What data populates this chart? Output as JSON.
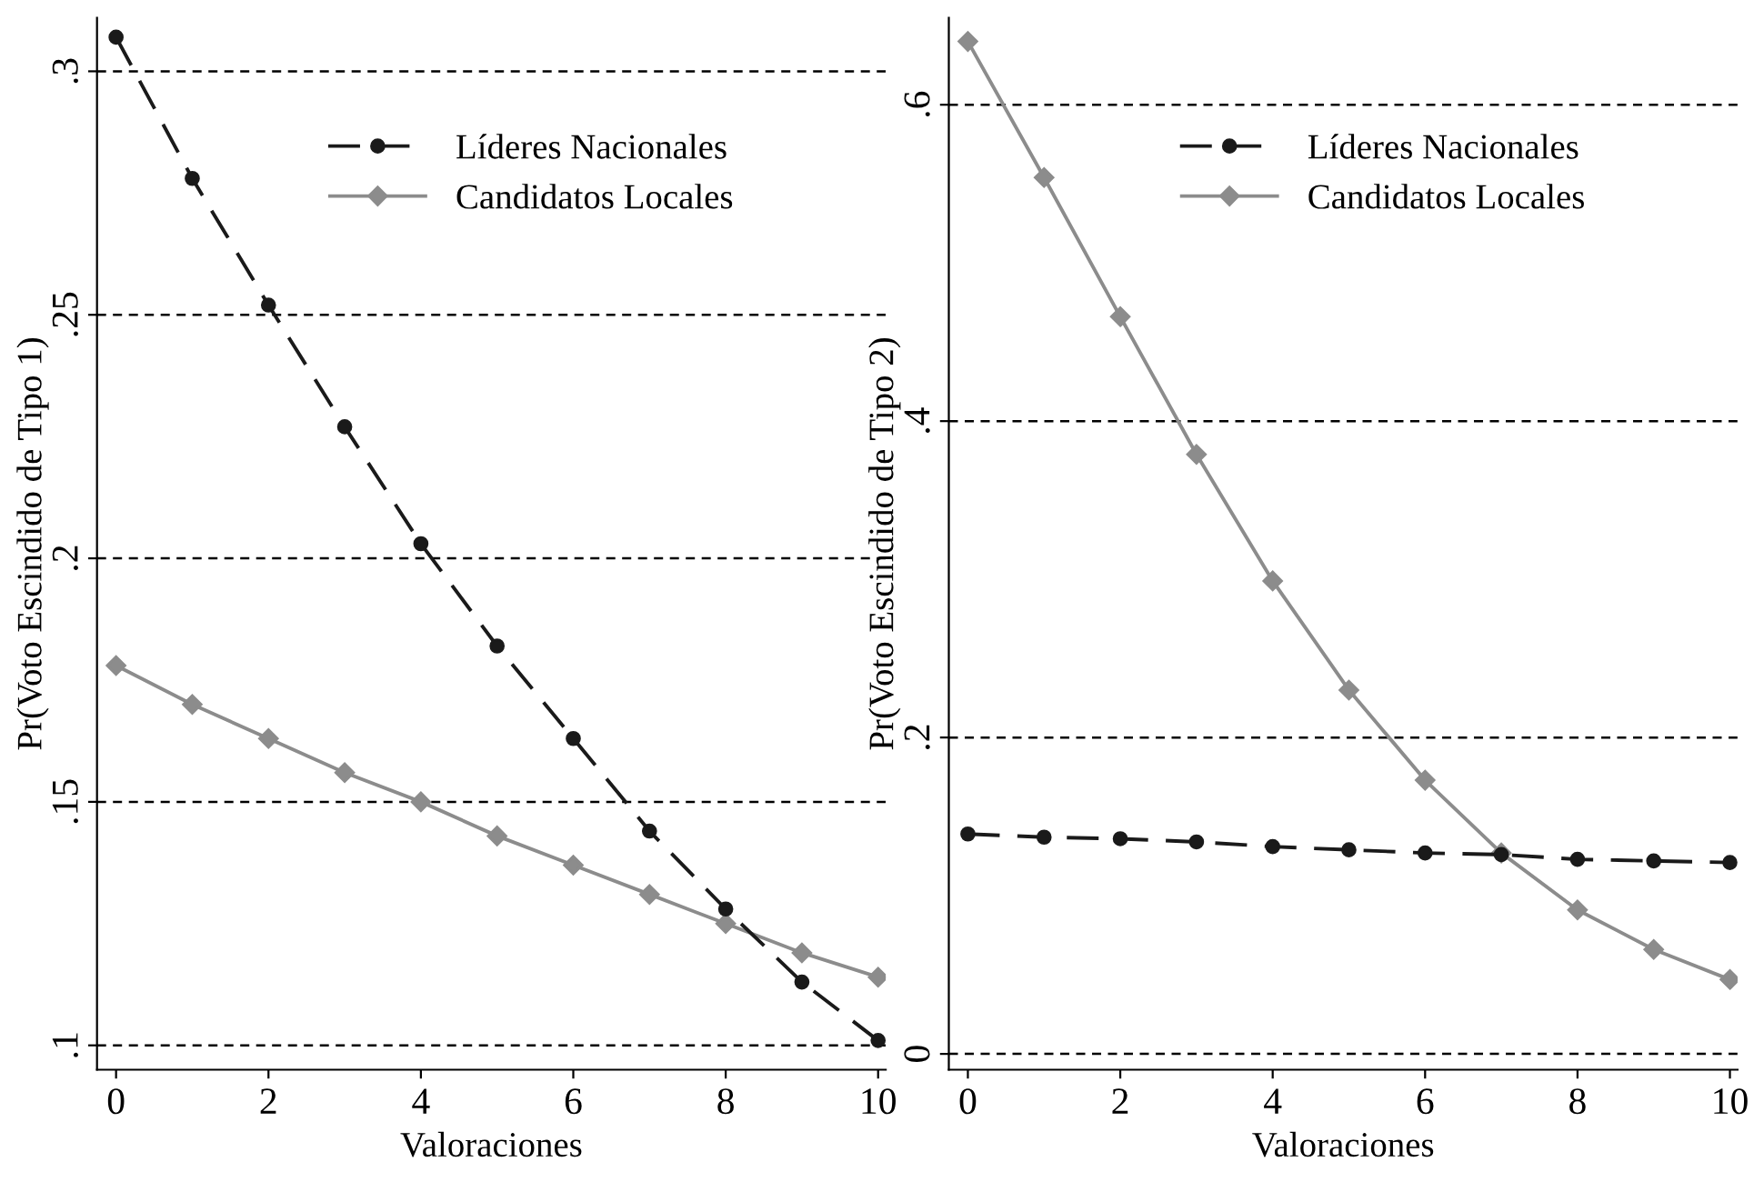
{
  "chart_data": [
    {
      "type": "line",
      "xlabel": "Valoraciones",
      "ylabel": "Pr(Voto Escindido de Tipo 1)",
      "x": [
        0,
        1,
        2,
        3,
        4,
        5,
        6,
        7,
        8,
        9,
        10
      ],
      "xlim": [
        -0.25,
        10.1
      ],
      "xticks": [
        0,
        2,
        4,
        6,
        8,
        10
      ],
      "ylim": [
        0.095,
        0.311
      ],
      "yticks": [
        {
          "value": 0.1,
          "label": ".1"
        },
        {
          "value": 0.15,
          "label": ".15"
        },
        {
          "value": 0.2,
          "label": ".2"
        },
        {
          "value": 0.25,
          "label": ".25"
        },
        {
          "value": 0.3,
          "label": ".3"
        }
      ],
      "grid": "y",
      "legend": "top",
      "series": [
        {
          "name": "Líderes Nacionales",
          "color": "#1a1a1a",
          "line_style": "dashed",
          "marker": "circle",
          "values": [
            0.307,
            0.278,
            0.252,
            0.227,
            0.203,
            0.182,
            0.163,
            0.144,
            0.128,
            0.113,
            0.101
          ]
        },
        {
          "name": "Candidatos Locales",
          "color": "#8c8c8c",
          "line_style": "solid",
          "marker": "diamond",
          "values": [
            0.178,
            0.17,
            0.163,
            0.156,
            0.15,
            0.143,
            0.137,
            0.131,
            0.125,
            0.119,
            0.114
          ]
        }
      ]
    },
    {
      "type": "line",
      "xlabel": "Valoraciones",
      "ylabel": "Pr(Voto Escindido de Tipo 2)",
      "x": [
        0,
        1,
        2,
        3,
        4,
        5,
        6,
        7,
        8,
        9,
        10
      ],
      "xlim": [
        -0.25,
        10.1
      ],
      "xticks": [
        0,
        2,
        4,
        6,
        8,
        10
      ],
      "ylim": [
        -0.01,
        0.655
      ],
      "yticks": [
        {
          "value": 0,
          "label": "0"
        },
        {
          "value": 0.2,
          "label": ".2"
        },
        {
          "value": 0.4,
          "label": ".4"
        },
        {
          "value": 0.6,
          "label": ".6"
        }
      ],
      "grid": "y",
      "legend": "top",
      "series": [
        {
          "name": "Líderes Nacionales",
          "color": "#1a1a1a",
          "line_style": "dashed",
          "marker": "circle",
          "values": [
            0.139,
            0.137,
            0.136,
            0.134,
            0.131,
            0.129,
            0.127,
            0.126,
            0.123,
            0.122,
            0.121
          ]
        },
        {
          "name": "Candidatos Locales",
          "color": "#8c8c8c",
          "line_style": "solid",
          "marker": "diamond",
          "values": [
            0.64,
            0.554,
            0.466,
            0.379,
            0.299,
            0.23,
            0.173,
            0.127,
            0.091,
            0.066,
            0.047
          ]
        }
      ]
    }
  ]
}
